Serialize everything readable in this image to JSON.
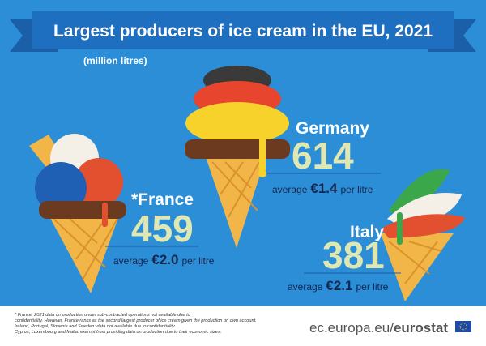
{
  "header": {
    "title": "Largest producers of ice cream in the EU, 2021",
    "subtitle": "(million litres)"
  },
  "items": [
    {
      "country": "Germany",
      "value": 614,
      "average": "average",
      "price": "€1.4",
      "unit": "per litre"
    },
    {
      "country": "*France",
      "value": 459,
      "average": "average",
      "price": "€2.0",
      "unit": "per litre"
    },
    {
      "country": "Italy",
      "value": 381,
      "average": "average",
      "price": "€2.1",
      "unit": "per litre"
    }
  ],
  "footnote": [
    "* France: 2021 data on production under sub-contracted operations not available due to",
    "confidentiality. However, France ranks as the second largest producer of ice cream given the production on own account.",
    "Ireland, Portugal, Slovenia and Sweden: data not available due to confidentiality.",
    "Cyprus, Luxembourg and Malta: exempt from providing data on production due to their economic sizes."
  ],
  "logo": {
    "domain": "ec.europa.eu/",
    "brand": "eurostat"
  }
}
